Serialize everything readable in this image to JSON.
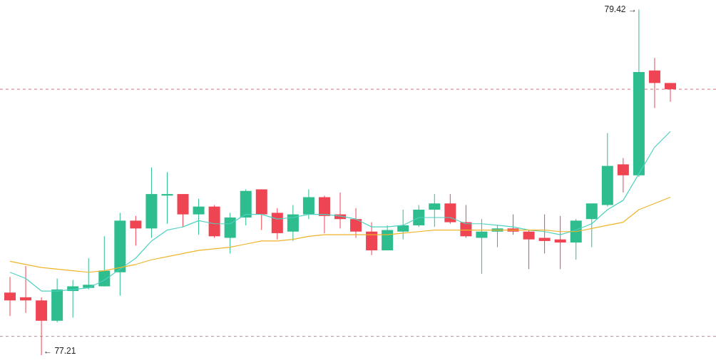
{
  "chart_data": {
    "type": "candlestick",
    "categories": [
      null,
      null,
      null,
      null,
      null,
      null,
      null,
      null,
      null,
      null,
      null,
      null,
      null,
      null,
      null,
      null,
      null,
      null,
      null,
      null,
      null,
      null,
      null,
      null,
      null,
      null,
      null,
      null,
      null,
      null,
      null,
      null,
      null,
      null,
      null,
      null,
      null,
      null,
      null,
      null,
      null,
      null,
      null
    ],
    "ohlc": [
      [
        77.61,
        77.71,
        77.46,
        77.56
      ],
      [
        77.58,
        77.78,
        77.48,
        77.56
      ],
      [
        77.56,
        77.58,
        77.21,
        77.43
      ],
      [
        77.43,
        77.7,
        77.42,
        77.63
      ],
      [
        77.62,
        77.69,
        77.45,
        77.65
      ],
      [
        77.64,
        77.83,
        77.63,
        77.66
      ],
      [
        77.65,
        77.97,
        77.65,
        77.75
      ],
      [
        77.74,
        78.12,
        77.59,
        78.07
      ],
      [
        78.07,
        78.1,
        77.91,
        78.02
      ],
      [
        78.02,
        78.41,
        77.96,
        78.24
      ],
      [
        78.23,
        78.38,
        78.05,
        78.24
      ],
      [
        78.24,
        78.24,
        78.03,
        78.11
      ],
      [
        78.11,
        78.21,
        77.98,
        78.16
      ],
      [
        78.16,
        78.17,
        77.96,
        77.97
      ],
      [
        77.96,
        78.12,
        77.86,
        78.09
      ],
      [
        78.09,
        78.27,
        78.04,
        78.26
      ],
      [
        78.27,
        78.27,
        78.01,
        78.11
      ],
      [
        78.12,
        78.15,
        77.95,
        77.99
      ],
      [
        78.0,
        78.17,
        77.94,
        78.11
      ],
      [
        78.11,
        78.27,
        78.08,
        78.22
      ],
      [
        78.22,
        78.23,
        77.99,
        78.1
      ],
      [
        78.11,
        78.25,
        78.02,
        78.08
      ],
      [
        78.08,
        78.15,
        77.96,
        78.0
      ],
      [
        78.0,
        78.06,
        77.85,
        77.88
      ],
      [
        77.88,
        78.04,
        77.88,
        78.01
      ],
      [
        78.0,
        78.14,
        77.95,
        78.04
      ],
      [
        78.04,
        78.17,
        78.03,
        78.14
      ],
      [
        78.14,
        78.24,
        78.03,
        78.18
      ],
      [
        78.18,
        78.24,
        78.05,
        78.06
      ],
      [
        78.06,
        78.17,
        77.96,
        77.97
      ],
      [
        77.96,
        78.08,
        77.73,
        78.0
      ],
      [
        78.0,
        78.04,
        77.9,
        78.02
      ],
      [
        78.02,
        78.11,
        77.98,
        78.0
      ],
      [
        78.0,
        78.01,
        77.76,
        77.95
      ],
      [
        77.96,
        78.11,
        77.86,
        77.94
      ],
      [
        77.95,
        78.1,
        77.76,
        77.93
      ],
      [
        77.93,
        78.08,
        77.82,
        78.07
      ],
      [
        78.08,
        78.18,
        77.9,
        78.18
      ],
      [
        78.17,
        78.63,
        78.16,
        78.42
      ],
      [
        78.43,
        78.47,
        78.25,
        78.36
      ],
      [
        78.36,
        79.42,
        78.35,
        79.02
      ],
      [
        79.03,
        79.11,
        78.79,
        78.95
      ],
      [
        78.95,
        78.95,
        78.83,
        78.91
      ]
    ],
    "colors": [
      "#ef4452",
      "#ef4452",
      "#ef4452",
      "#2dbd8f",
      "#2dbd8f",
      "#2dbd8f",
      "#2dbd8f",
      "#2dbd8f",
      "#ef4452",
      "#2dbd8f",
      "#2dbd8f",
      "#ef4452",
      "#2dbd8f",
      "#ef4452",
      "#2dbd8f",
      "#2dbd8f",
      "#ef4452",
      "#ef4452",
      "#2dbd8f",
      "#2dbd8f",
      "#ef4452",
      "#ef4452",
      "#ef4452",
      "#ef4452",
      "#2dbd8f",
      "#2dbd8f",
      "#2dbd8f",
      "#2dbd8f",
      "#ef4452",
      "#ef4452",
      "#2dbd8f",
      "#2dbd8f",
      "#ef4452",
      "#ef4452",
      "#ef4452",
      "#ef4452",
      "#2dbd8f",
      "#2dbd8f",
      "#2dbd8f",
      "#ef4452",
      "#2dbd8f",
      "#ef4452",
      "#ef4452"
    ],
    "series": [
      {
        "type": "line",
        "color": "#4fd1c0",
        "values": [
          77.74,
          77.7,
          77.62,
          77.62,
          77.63,
          77.64,
          77.69,
          77.76,
          77.83,
          77.94,
          78.01,
          78.03,
          78.07,
          78.05,
          78.05,
          78.11,
          78.11,
          78.08,
          78.09,
          78.11,
          78.11,
          78.1,
          78.08,
          78.03,
          78.03,
          78.04,
          78.09,
          78.09,
          78.09,
          78.05,
          78.05,
          78.04,
          78.03,
          78.01,
          78.0,
          77.98,
          78.01,
          78.05,
          78.14,
          78.2,
          78.37,
          78.54,
          78.64
        ]
      },
      {
        "type": "line",
        "color": "#f0b429",
        "values": [
          77.81,
          77.79,
          77.77,
          77.76,
          77.75,
          77.74,
          77.75,
          77.77,
          77.79,
          77.82,
          77.84,
          77.86,
          77.88,
          77.89,
          77.9,
          77.92,
          77.94,
          77.94,
          77.95,
          77.97,
          77.98,
          77.98,
          77.98,
          77.98,
          77.98,
          77.99,
          78.0,
          78.01,
          78.01,
          78.01,
          78.01,
          78.01,
          78.01,
          78.01,
          78.01,
          78.0,
          78.0,
          78.02,
          78.04,
          78.06,
          78.14,
          78.18,
          78.22
        ]
      }
    ],
    "ref_lines": [
      {
        "axis": "y",
        "value": 78.91,
        "color": "#d9707a",
        "line_style": "dashed"
      },
      {
        "axis": "y",
        "value": 77.33,
        "color": "#b98a92",
        "line_style": "dashed"
      }
    ],
    "annotations": [
      "79.42 →",
      "← 77.21"
    ]
  }
}
